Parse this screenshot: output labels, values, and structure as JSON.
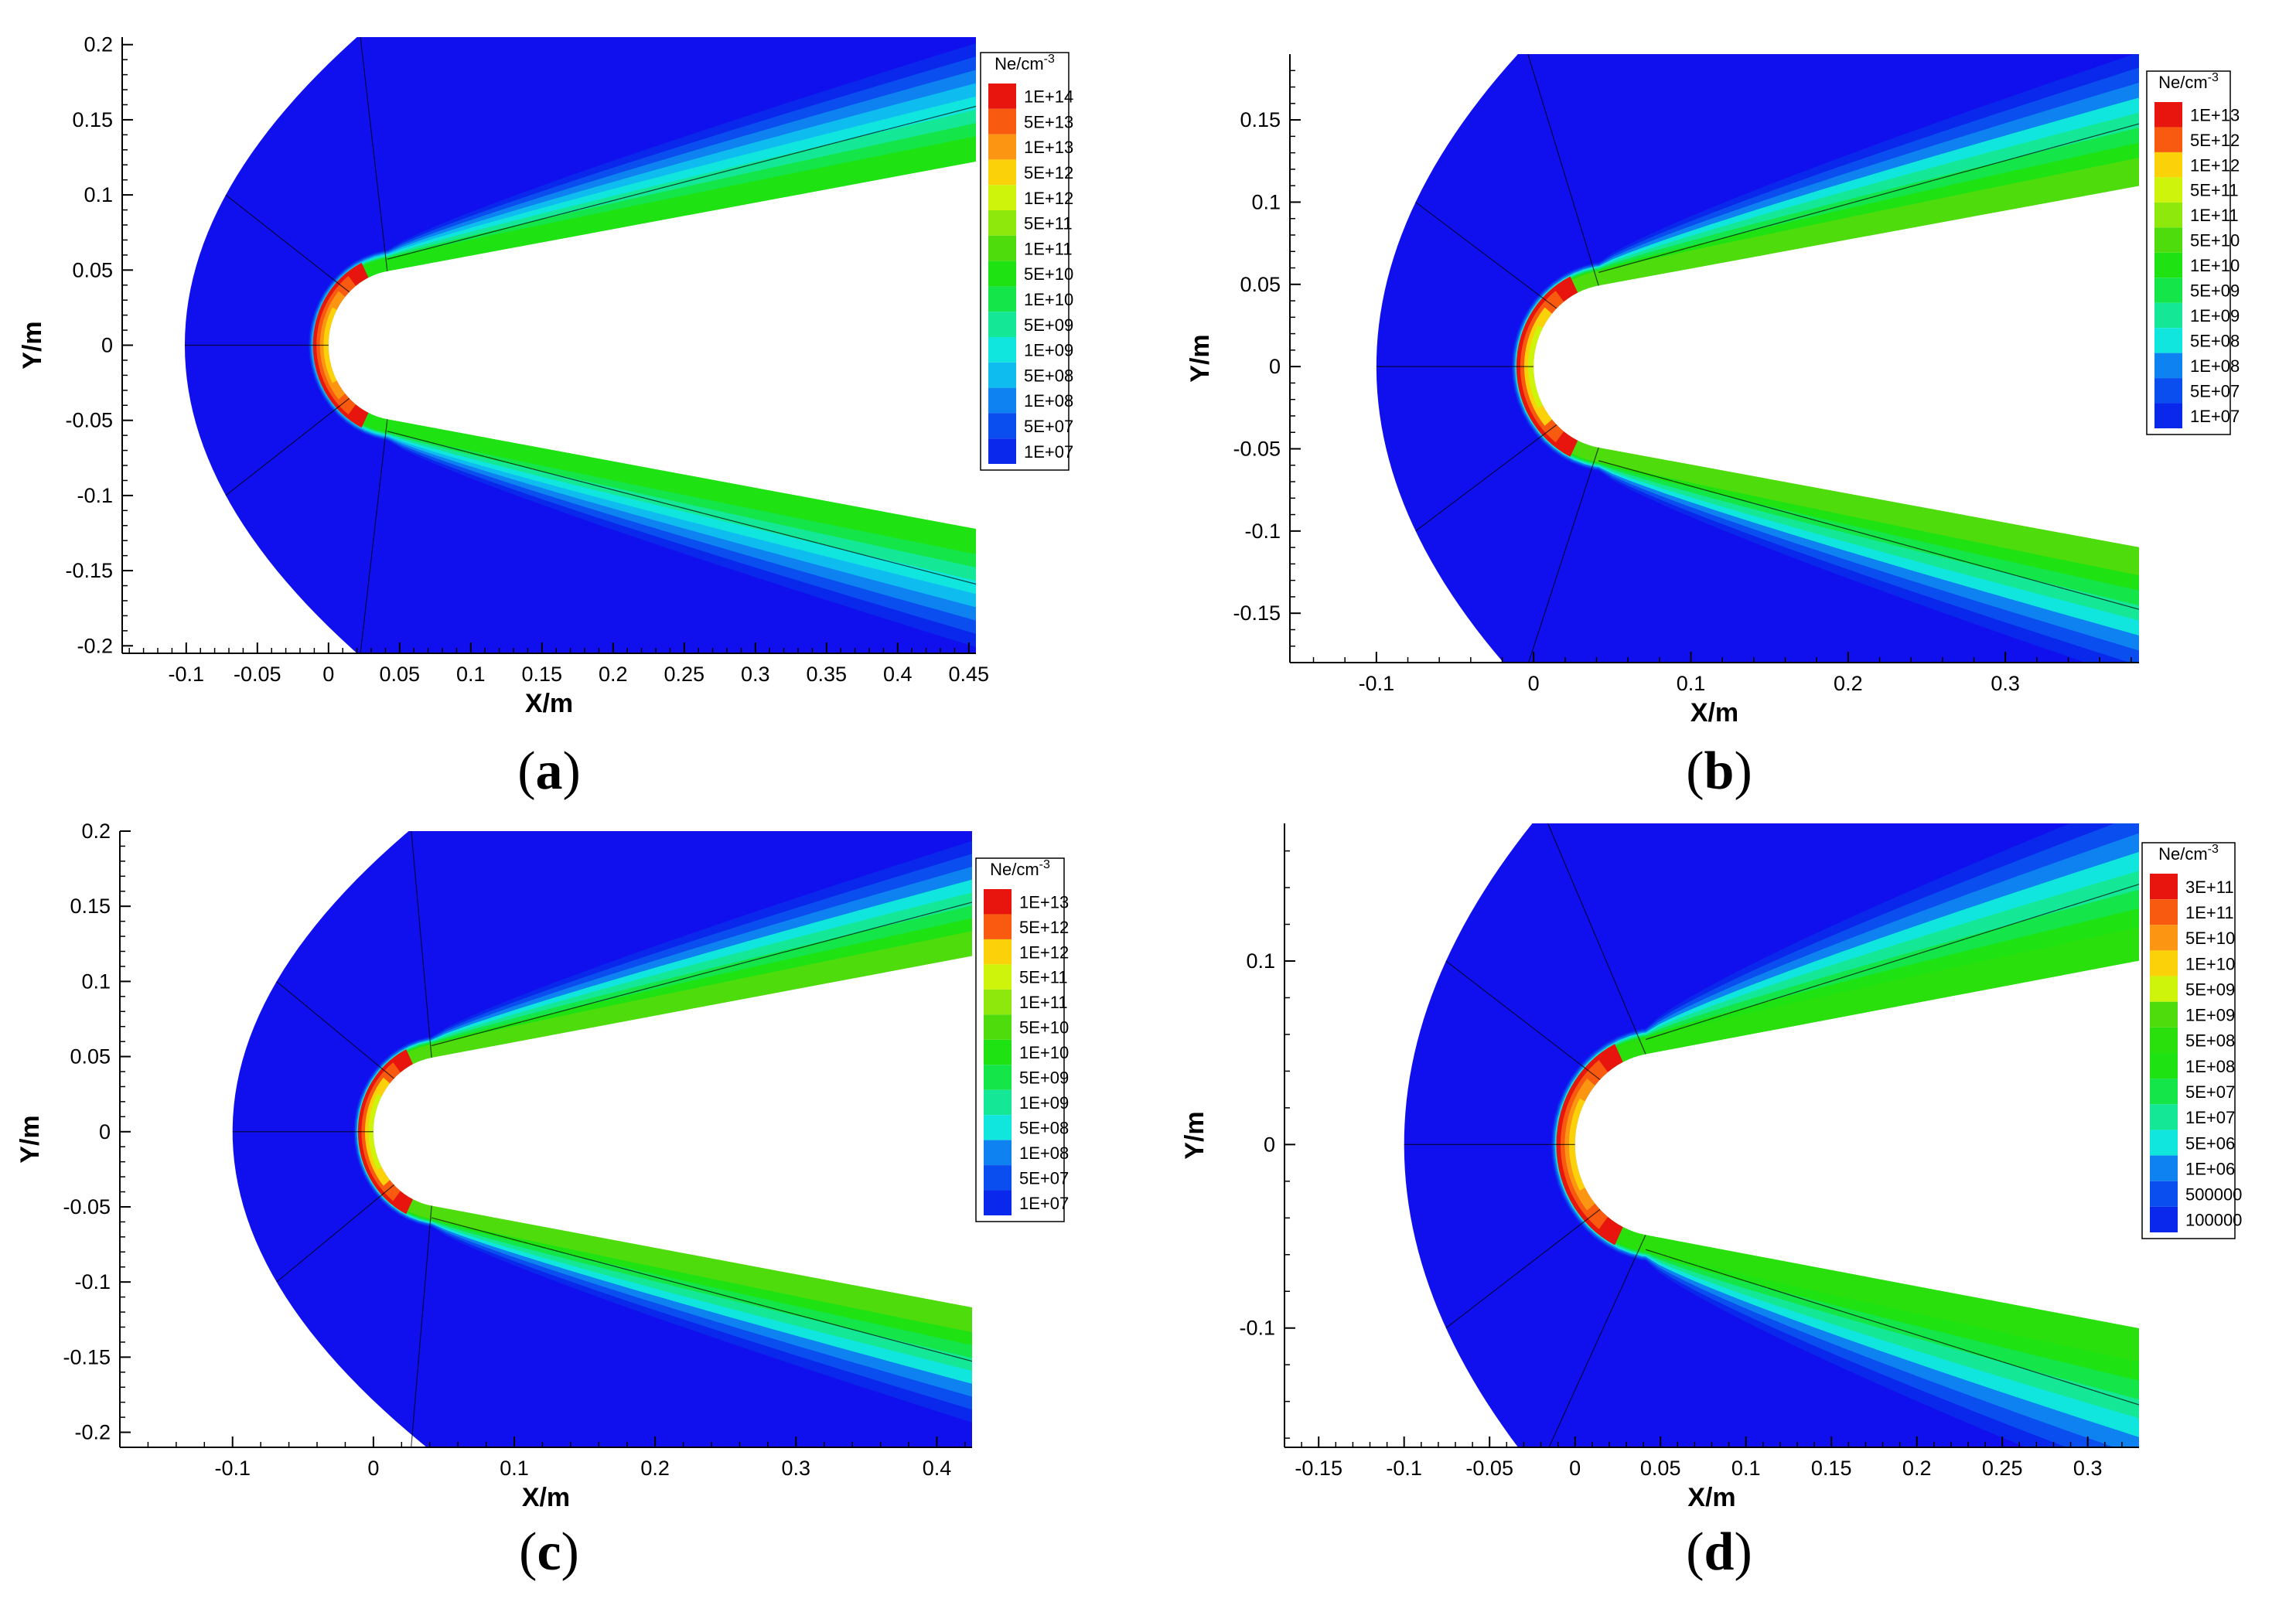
{
  "chart_data": [
    {
      "type": "heatmap",
      "caption": "(a)",
      "xlabel": "X/m",
      "ylabel": "Y/m",
      "xlim": [
        -0.145,
        0.455
      ],
      "ylim": [
        -0.205,
        0.205
      ],
      "xticks": [
        -0.1,
        -0.05,
        0,
        0.05,
        0.1,
        0.15,
        0.2,
        0.25,
        0.3,
        0.35,
        0.4,
        0.45
      ],
      "xtick_labels": [
        "-0.1",
        "-0.05",
        "0",
        "0.05",
        "0.1",
        "0.15",
        "0.2",
        "0.25",
        "0.3",
        "0.35",
        "0.4",
        "0.45"
      ],
      "yticks": [
        0.2,
        0.15,
        0.1,
        0.05,
        0,
        -0.05,
        -0.1,
        -0.15,
        -0.2
      ],
      "ytick_labels": [
        "0.2",
        "0.15",
        "0.1",
        "0.05",
        "0",
        "-0.05",
        "-0.1",
        "-0.15",
        "-0.2"
      ],
      "legend": {
        "title": "Ne/cm",
        "title_sup": "-3",
        "levels": [
          "1E+14",
          "5E+13",
          "1E+13",
          "5E+12",
          "1E+12",
          "5E+11",
          "1E+11",
          "5E+10",
          "1E+10",
          "5E+09",
          "1E+09",
          "5E+08",
          "1E+08",
          "5E+07",
          "1E+07"
        ],
        "colors": [
          "#e8150e",
          "#f85a10",
          "#fc9612",
          "#fbd20a",
          "#cff40c",
          "#8ee80b",
          "#4fdc0c",
          "#1ee212",
          "#14e548",
          "#14e896",
          "#10e6de",
          "#0fbcf0",
          "#0d82f0",
          "#0a4ef0",
          "#0a28ec"
        ]
      },
      "shock_standoff_x": -0.101,
      "shock_x_at_ymax": 0.02,
      "nose_radius": 0.05,
      "cone_half_angle_deg": 10,
      "outer_plume_halfwidth_at_xmax": 0.067,
      "outer_color": "#1010ee"
    },
    {
      "type": "heatmap",
      "caption": "(b)",
      "xlabel": "X/m",
      "ylabel": "Y/m",
      "xlim": [
        -0.155,
        0.385
      ],
      "ylim": [
        -0.18,
        0.19
      ],
      "xticks": [
        -0.1,
        0,
        0.1,
        0.2,
        0.3
      ],
      "xtick_labels": [
        "-0.1",
        "0",
        "0.1",
        "0.2",
        "0.3"
      ],
      "yticks": [
        0.15,
        0.1,
        0.05,
        0,
        -0.05,
        -0.1,
        -0.15
      ],
      "ytick_labels": [
        "0.15",
        "0.1",
        "0.05",
        "0",
        "-0.05",
        "-0.1",
        "-0.15"
      ],
      "legend": {
        "title": "Ne/cm",
        "title_sup": "-3",
        "levels": [
          "1E+13",
          "5E+12",
          "1E+12",
          "5E+11",
          "1E+11",
          "5E+10",
          "1E+10",
          "5E+09",
          "1E+09",
          "5E+08",
          "1E+08",
          "5E+07",
          "1E+07"
        ],
        "colors": [
          "#e8150e",
          "#f85a10",
          "#fbd20a",
          "#cff40c",
          "#8ee80b",
          "#4fdc0c",
          "#1ee212",
          "#14e548",
          "#14e896",
          "#10e6de",
          "#0d82f0",
          "#0a4ef0",
          "#0a28ec"
        ]
      },
      "shock_standoff_x": -0.1,
      "shock_x_at_ymax": -0.01,
      "nose_radius": 0.05,
      "cone_half_angle_deg": 10,
      "outer_plume_halfwidth_at_xmax": 0.07,
      "outer_color": "#1010ee"
    },
    {
      "type": "heatmap",
      "caption": "(c)",
      "xlabel": "X/m",
      "ylabel": "Y/m",
      "xlim": [
        -0.18,
        0.425
      ],
      "ylim": [
        -0.21,
        0.2
      ],
      "xticks": [
        -0.1,
        0,
        0.1,
        0.2,
        0.3,
        0.4
      ],
      "xtick_labels": [
        "-0.1",
        "0",
        "0.1",
        "0.2",
        "0.3",
        "0.4"
      ],
      "yticks": [
        0.2,
        0.15,
        0.1,
        0.05,
        0,
        -0.05,
        -0.1,
        -0.15,
        -0.2
      ],
      "ytick_labels": [
        "0.2",
        "0.15",
        "0.1",
        "0.05",
        "0",
        "-0.05",
        "-0.1",
        "-0.15",
        "-0.2"
      ],
      "legend": {
        "title": "Ne/cm",
        "title_sup": "-3",
        "levels": [
          "1E+13",
          "5E+12",
          "1E+12",
          "5E+11",
          "1E+11",
          "5E+10",
          "1E+10",
          "5E+09",
          "1E+09",
          "5E+08",
          "1E+08",
          "5E+07",
          "1E+07"
        ],
        "colors": [
          "#e8150e",
          "#f85a10",
          "#fbd20a",
          "#cff40c",
          "#8ee80b",
          "#4fdc0c",
          "#1ee212",
          "#14e548",
          "#14e896",
          "#10e6de",
          "#0d82f0",
          "#0a4ef0",
          "#0a28ec"
        ]
      },
      "shock_standoff_x": -0.1,
      "shock_x_at_ymax": 0.025,
      "nose_radius": 0.05,
      "cone_half_angle_deg": 10,
      "outer_plume_halfwidth_at_xmax": 0.065,
      "outer_color": "#1010ee"
    },
    {
      "type": "heatmap",
      "caption": "(d)",
      "xlabel": "X/m",
      "ylabel": "Y/m",
      "xlim": [
        -0.17,
        0.33
      ],
      "ylim": [
        -0.165,
        0.175
      ],
      "xticks": [
        -0.15,
        -0.1,
        -0.05,
        0,
        0.05,
        0.1,
        0.15,
        0.2,
        0.25,
        0.3
      ],
      "xtick_labels": [
        "-0.15",
        "-0.1",
        "-0.05",
        "0",
        "0.05",
        "0.1",
        "0.15",
        "0.2",
        "0.25",
        "0.3"
      ],
      "yticks": [
        0.1,
        0,
        -0.1
      ],
      "ytick_labels": [
        "0.1",
        "0",
        "-0.1"
      ],
      "legend": {
        "title": "Ne/cm",
        "title_sup": "-3",
        "levels": [
          "3E+11",
          "1E+11",
          "5E+10",
          "1E+10",
          "5E+09",
          "1E+09",
          "5E+08",
          "1E+08",
          "5E+07",
          "1E+07",
          "5E+06",
          "1E+06",
          "500000",
          "100000"
        ],
        "colors": [
          "#e8150e",
          "#f85a10",
          "#fc9612",
          "#fbd20a",
          "#cff40c",
          "#4fdc0c",
          "#2ae00c",
          "#1ee212",
          "#14e548",
          "#14e896",
          "#10e6de",
          "#0d82f0",
          "#0a4ef0",
          "#0a28ec"
        ]
      },
      "shock_standoff_x": -0.1,
      "shock_x_at_ymax": -0.025,
      "nose_radius": 0.05,
      "cone_half_angle_deg": 10,
      "outer_plume_halfwidth_at_xmax": 0.08,
      "outer_color": "#1010ee"
    }
  ]
}
